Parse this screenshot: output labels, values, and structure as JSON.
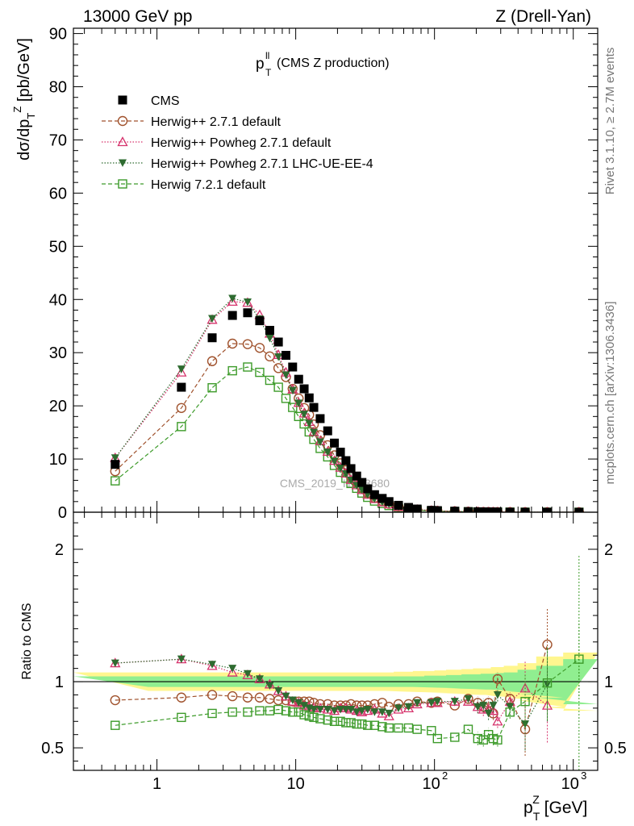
{
  "header": {
    "left": "13000 GeV pp",
    "right": "Z (Drell-Yan)"
  },
  "side_labels": {
    "rivet": "Rivet 3.1.10, ≥ 2.7M events",
    "mcplots": "mcplots.cern.ch [arXiv:1306.3436]"
  },
  "watermark": "CMS_2019_I1753680",
  "plot_title": {
    "main": "p",
    "sup": "ll",
    "sub": "T",
    "rest": " (CMS Z production)"
  },
  "colors": {
    "data": "#000000",
    "herwig_271": "#a0522d",
    "powheg_271": "#d6336c",
    "powheg_ueee4": "#2e6b30",
    "herwig_721": "#3d9b2a",
    "band_inner": "#90ee90",
    "band_outer": "#fff68f"
  },
  "chart_data": [
    {
      "panel": "main",
      "type": "scatter",
      "ylabel": "dσ/dp_T^Z [pb/GeV]",
      "xlabel": "p_T^Z [GeV]",
      "xscale": "log",
      "xlim": [
        0.25,
        1500
      ],
      "ylim": [
        0,
        91
      ],
      "yticks": [
        0,
        10,
        20,
        30,
        40,
        50,
        60,
        70,
        80,
        90
      ],
      "x": [
        0.5,
        1.5,
        2.5,
        3.5,
        4.5,
        5.5,
        6.5,
        7.5,
        8.5,
        9.5,
        10.5,
        11.5,
        12.5,
        13.5,
        15,
        17,
        19,
        21,
        23,
        25,
        27.5,
        30,
        33,
        37,
        42,
        47,
        55,
        65,
        75,
        95,
        105,
        140,
        175,
        205,
        225,
        245,
        265,
        285,
        350,
        450,
        650,
        1100
      ],
      "series": [
        {
          "name": "CMS",
          "marker": "filled-square",
          "values": [
            9.0,
            23.5,
            32.8,
            37.0,
            37.5,
            36.0,
            34.2,
            32.0,
            29.5,
            27.3,
            25.0,
            23.2,
            21.5,
            19.7,
            17.6,
            15.3,
            13.0,
            11.3,
            9.7,
            8.2,
            6.8,
            5.6,
            4.4,
            3.3,
            2.6,
            2.0,
            1.3,
            0.9,
            0.6,
            0.35,
            0.3,
            0.2,
            0.12,
            0.08,
            0.06,
            0.05,
            0.04,
            0.035,
            0.02,
            0.01,
            0.005,
            0.001
          ]
        },
        {
          "name": "Herwig++ 2.7.1 default",
          "marker": "open-circle",
          "values": [
            7.7,
            19.6,
            28.4,
            31.7,
            31.6,
            30.9,
            29.3,
            27.1,
            25.4,
            23.2,
            21.4,
            19.6,
            18.3,
            16.5,
            14.5,
            12.6,
            10.7,
            9.2,
            7.9,
            6.7,
            5.6,
            4.6,
            3.6,
            2.7,
            2.1,
            1.6,
            1.1,
            0.75,
            0.5,
            0.3,
            0.25,
            0.17,
            0.1,
            0.07,
            0.05,
            0.04,
            0.035,
            0.03,
            0.02,
            0.01,
            0.005,
            0.001
          ]
        },
        {
          "name": "Herwig++ Powheg 2.7.1 default",
          "marker": "open-triangle",
          "values": [
            10.2,
            26.3,
            36.2,
            39.6,
            39.4,
            37.1,
            33.6,
            29.6,
            26.3,
            23.1,
            20.6,
            18.6,
            17.0,
            15.1,
            13.4,
            11.4,
            9.7,
            8.4,
            7.3,
            6.1,
            5.1,
            4.2,
            3.3,
            2.5,
            1.9,
            1.5,
            1.0,
            0.72,
            0.5,
            0.3,
            0.25,
            0.17,
            0.1,
            0.07,
            0.05,
            0.04,
            0.035,
            0.03,
            0.02,
            0.01,
            0.005,
            0.001
          ]
        },
        {
          "name": "Herwig++ Powheg 2.7.1 LHC-UE-EE-4",
          "marker": "filled-triangle-down",
          "values": [
            10.2,
            26.9,
            36.4,
            40.2,
            39.5,
            36.3,
            32.7,
            29.2,
            25.8,
            22.9,
            20.5,
            18.4,
            16.7,
            15.0,
            13.2,
            11.3,
            9.6,
            8.3,
            7.2,
            6.0,
            5.0,
            4.2,
            3.3,
            2.5,
            1.9,
            1.5,
            1.0,
            0.72,
            0.5,
            0.3,
            0.25,
            0.17,
            0.1,
            0.07,
            0.05,
            0.04,
            0.035,
            0.03,
            0.02,
            0.01,
            0.005,
            0.001
          ]
        },
        {
          "name": "Herwig 7.2.1 default",
          "marker": "open-square",
          "values": [
            5.9,
            16.1,
            23.4,
            26.6,
            27.3,
            26.3,
            24.8,
            23.5,
            21.4,
            19.7,
            18.0,
            16.6,
            15.1,
            13.7,
            12.0,
            10.4,
            8.8,
            7.5,
            6.4,
            5.4,
            4.5,
            3.6,
            2.8,
            2.1,
            1.65,
            1.25,
            0.85,
            0.58,
            0.38,
            0.2,
            0.17,
            0.12,
            0.08,
            0.05,
            0.04,
            0.03,
            0.02,
            0.02,
            0.015,
            0.008,
            0.004,
            0.001
          ]
        }
      ],
      "legend_position": "top-left"
    },
    {
      "panel": "ratio",
      "type": "scatter",
      "ylabel": "Ratio to CMS",
      "xlabel": "p_T^Z [GeV]",
      "xscale": "log",
      "xlim": [
        0.25,
        1500
      ],
      "ylim": [
        0.33,
        2.28
      ],
      "yticks": [
        0.5,
        1,
        2
      ],
      "x": [
        0.5,
        1.5,
        2.5,
        3.5,
        4.5,
        5.5,
        6.5,
        7.5,
        8.5,
        9.5,
        10.5,
        11.5,
        12.5,
        13.5,
        15,
        17,
        19,
        21,
        23,
        25,
        27.5,
        30,
        33,
        37,
        42,
        47,
        55,
        65,
        75,
        95,
        105,
        140,
        175,
        205,
        225,
        245,
        265,
        285,
        350,
        450,
        650,
        1100
      ],
      "band_inner": [
        0.04,
        0.04,
        0.04,
        0.04,
        0.04,
        0.04,
        0.04,
        0.04,
        0.04,
        0.04,
        0.04,
        0.04,
        0.04,
        0.04,
        0.04,
        0.04,
        0.04,
        0.04,
        0.04,
        0.04,
        0.04,
        0.04,
        0.04,
        0.04,
        0.04,
        0.04,
        0.04,
        0.04,
        0.04,
        0.045,
        0.045,
        0.05,
        0.055,
        0.055,
        0.06,
        0.06,
        0.06,
        0.065,
        0.07,
        0.09,
        0.12,
        0.17
      ],
      "band_outer": [
        0.07,
        0.07,
        0.07,
        0.07,
        0.07,
        0.07,
        0.07,
        0.07,
        0.07,
        0.07,
        0.07,
        0.07,
        0.07,
        0.07,
        0.07,
        0.07,
        0.07,
        0.07,
        0.07,
        0.07,
        0.07,
        0.07,
        0.07,
        0.07,
        0.07,
        0.07,
        0.075,
        0.075,
        0.08,
        0.08,
        0.085,
        0.09,
        0.095,
        0.1,
        0.1,
        0.1,
        0.11,
        0.11,
        0.12,
        0.14,
        0.19,
        0.22
      ],
      "series": [
        {
          "name": "Herwig++ 2.7.1 default",
          "values": [
            0.86,
            0.88,
            0.9,
            0.89,
            0.88,
            0.88,
            0.87,
            0.86,
            0.86,
            0.85,
            0.85,
            0.85,
            0.85,
            0.84,
            0.83,
            0.83,
            0.82,
            0.82,
            0.82,
            0.83,
            0.82,
            0.82,
            0.82,
            0.83,
            0.84,
            0.81,
            0.83,
            0.83,
            0.85,
            0.84,
            0.85,
            0.82,
            0.87,
            0.84,
            0.81,
            0.84,
            0.76,
            1.02,
            0.87,
            0.64,
            1.28,
            null
          ]
        },
        {
          "name": "Herwig++ Powheg 2.7.1 default",
          "values": [
            1.14,
            1.17,
            1.12,
            1.07,
            1.05,
            1.02,
            0.98,
            0.93,
            0.89,
            0.85,
            0.84,
            0.82,
            0.81,
            0.8,
            0.8,
            0.79,
            0.78,
            0.8,
            0.8,
            0.79,
            0.78,
            0.77,
            0.78,
            0.79,
            0.76,
            0.74,
            0.79,
            0.8,
            0.83,
            0.84,
            0.84,
            0.85,
            0.85,
            0.81,
            0.79,
            0.79,
            0.78,
            0.7,
            0.85,
            0.95,
            0.82,
            null
          ]
        },
        {
          "name": "Herwig++ Powheg 2.7.1 LHC-UE-EE-4",
          "values": [
            1.14,
            1.17,
            1.13,
            1.1,
            1.06,
            1.02,
            0.97,
            0.93,
            0.89,
            0.86,
            0.84,
            0.82,
            0.8,
            0.79,
            0.79,
            0.79,
            0.78,
            0.79,
            0.79,
            0.79,
            0.77,
            0.78,
            0.79,
            0.77,
            0.77,
            0.76,
            0.8,
            0.81,
            0.84,
            0.84,
            0.85,
            0.85,
            0.87,
            0.81,
            0.82,
            0.76,
            0.82,
            0.9,
            0.81,
            0.68,
            0.98,
            null
          ]
        },
        {
          "name": "Herwig 7.2.1 default",
          "values": [
            0.67,
            0.73,
            0.76,
            0.77,
            0.77,
            0.78,
            0.78,
            0.79,
            0.78,
            0.77,
            0.77,
            0.75,
            0.74,
            0.73,
            0.72,
            0.71,
            0.7,
            0.7,
            0.69,
            0.69,
            0.68,
            0.68,
            0.67,
            0.67,
            0.66,
            0.65,
            0.65,
            0.65,
            0.64,
            0.63,
            0.57,
            0.58,
            0.64,
            0.57,
            0.56,
            0.6,
            0.57,
            0.56,
            0.77,
            0.85,
            0.99,
            1.17
          ]
        }
      ]
    }
  ]
}
